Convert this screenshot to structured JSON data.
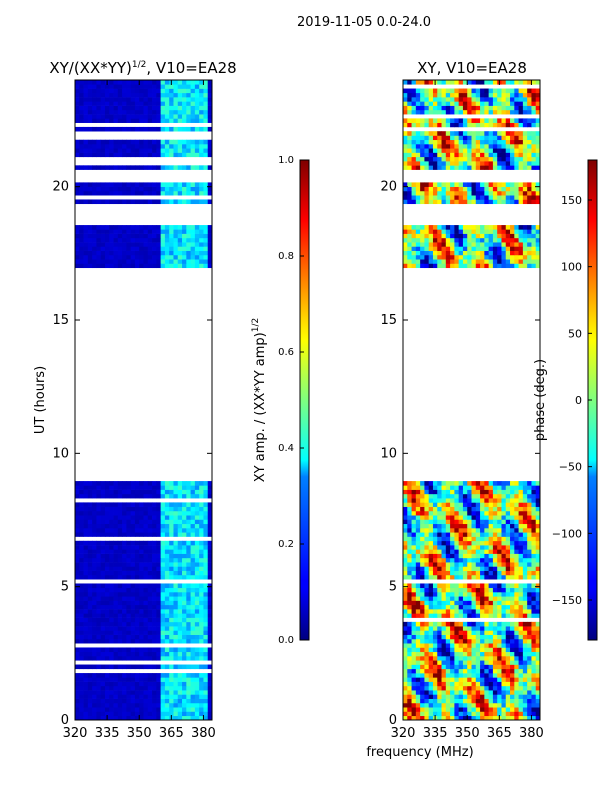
{
  "chart_data": {
    "type": "heatmap",
    "suptitle": "2019-11-05 0.0-24.0",
    "shared_xlabel": "frequency (MHz)",
    "panels": [
      {
        "name": "amplitude-ratio",
        "title_main": "XY/(XX*YY)",
        "title_sup": "1/2",
        "title_tail": ", V10=EA28",
        "ylabel": "UT (hours)",
        "xlim": [
          320,
          384
        ],
        "ylim": [
          0,
          24
        ],
        "xticks": [
          320,
          335,
          350,
          365,
          380
        ],
        "yticks": [
          0,
          5,
          10,
          15,
          20
        ],
        "colorbar": {
          "label_main": "XY amp. / (XX*YY amp)",
          "label_sup": "1/2",
          "range": [
            0.0,
            1.0
          ],
          "ticks": [
            "0.0",
            "0.2",
            "0.4",
            "0.6",
            "0.8",
            "1.0"
          ],
          "colormap": "jet"
        },
        "data_hour_ranges": [
          [
            0,
            8.9
          ],
          [
            16.9,
            18.6
          ],
          [
            19.4,
            20.1
          ],
          [
            20.7,
            24
          ]
        ],
        "high_freq_band": [
          360,
          382
        ],
        "dominant_value": 0.05,
        "band_value": 0.35
      },
      {
        "name": "phase",
        "title_main": "XY, V10=EA28",
        "ylabel": "",
        "xlim": [
          320,
          384
        ],
        "ylim": [
          0,
          24
        ],
        "xticks": [
          320,
          335,
          350,
          365,
          380
        ],
        "yticks": [
          0,
          5,
          10,
          15,
          20
        ],
        "colorbar": {
          "label_main": "phase (deg.)",
          "range": [
            -180,
            180
          ],
          "ticks": [
            "150",
            "100",
            "50",
            "0",
            "−50",
            "−100",
            "−150"
          ],
          "tick_values": [
            150,
            100,
            50,
            0,
            -50,
            -100,
            -150
          ],
          "colormap": "jet"
        },
        "data_hour_ranges": [
          [
            0,
            8.9
          ],
          [
            16.9,
            18.6
          ],
          [
            19.4,
            20.1
          ],
          [
            20.7,
            24
          ]
        ]
      }
    ]
  }
}
